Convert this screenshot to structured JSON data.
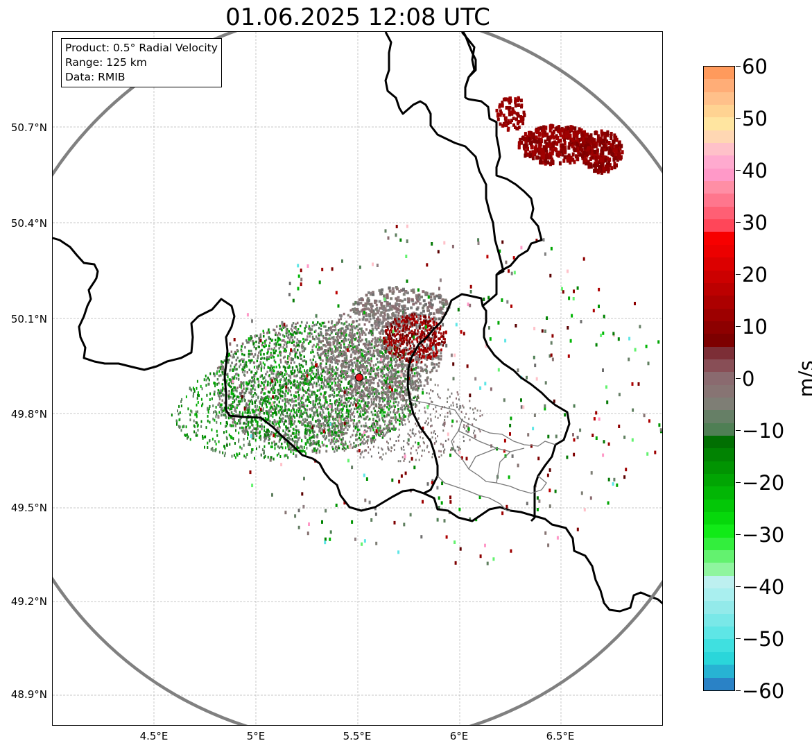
{
  "title": "01.06.2025 12:08 UTC",
  "info": {
    "product": "Product: 0.5° Radial Velocity",
    "range": "Range: 125 km",
    "source": "Data: RMIB"
  },
  "axes": {
    "lat_ticks": [
      "50.7°N",
      "50.4°N",
      "50.1°N",
      "49.8°N",
      "49.5°N",
      "49.2°N",
      "48.9°N"
    ],
    "lon_ticks": [
      "4.5°E",
      "5°E",
      "5.5°E",
      "6°E",
      "6.5°E"
    ]
  },
  "colorbar": {
    "unit": "m/s",
    "ticks": [
      "60",
      "50",
      "40",
      "30",
      "20",
      "10",
      "0",
      "−10",
      "−20",
      "−30",
      "−40",
      "−50",
      "−60"
    ],
    "range": [
      -60,
      60
    ],
    "colors": [
      "#2a82c6",
      "#27b3d3",
      "#2ad6da",
      "#3fe0e0",
      "#5ee6e6",
      "#79e8e8",
      "#93eaea",
      "#a9efef",
      "#bdf0f0",
      "#8ff59f",
      "#63f26f",
      "#33ee3d",
      "#11ea17",
      "#06d80b",
      "#03c707",
      "#02b605",
      "#01a503",
      "#019402",
      "#018302",
      "#016f02",
      "#4f7f54",
      "#667f66",
      "#7e7e75",
      "#877473",
      "#8a6a6f",
      "#884e56",
      "#7c2e36",
      "#7d0000",
      "#8d0000",
      "#9d0000",
      "#ac0000",
      "#bc0000",
      "#cc0000",
      "#dc0000",
      "#ec0000",
      "#f70000",
      "#ff4659",
      "#ff5f74",
      "#ff768d",
      "#ff8ea5",
      "#ff99c8",
      "#ffaacf",
      "#ffc1c9",
      "#ffd7b3",
      "#ffe5a0",
      "#ffd392",
      "#ffc08a",
      "#ffad77",
      "#ff9a5c"
    ]
  },
  "map": {
    "radar_site": {
      "lon": 5.51,
      "lat": 49.91
    },
    "range_ring_km": 125
  }
}
